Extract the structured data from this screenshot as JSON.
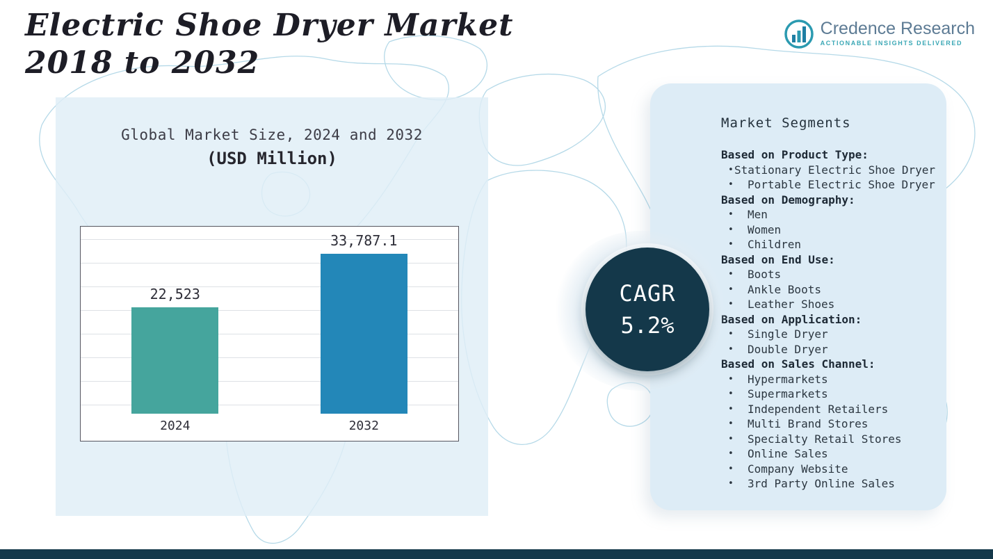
{
  "header": {
    "title_line1": "Electric Shoe Dryer Market",
    "title_line2": "2018 to 2032",
    "logo": {
      "name": "Credence Research",
      "tagline": "Actionable Insights Delivered"
    }
  },
  "chart_panel": {
    "title": "Global Market Size, 2024 and 2032",
    "subtitle": "(USD Million)"
  },
  "chart_data": {
    "type": "bar",
    "title": "Global Market Size, 2024 and 2032",
    "subtitle": "(USD Million)",
    "categories": [
      "2024",
      "2032"
    ],
    "values": [
      22523,
      33787.1
    ],
    "value_labels": [
      "22,523",
      "33,787.1"
    ],
    "bar_colors": [
      "#45a59d",
      "#2387b8"
    ],
    "ylim": [
      0,
      40000
    ],
    "grid": true,
    "legend": false,
    "xlabel": "",
    "ylabel": ""
  },
  "cagr_badge": {
    "label": "CAGR",
    "value": "5.2%"
  },
  "segments_panel": {
    "title": "Market Segments",
    "groups": [
      {
        "heading": "Based on Product Type:",
        "items": [
          "Stationary Electric Shoe Dryer",
          "Portable Electric Shoe Dryer"
        ]
      },
      {
        "heading": "Based on Demography:",
        "items": [
          "Men",
          "Women",
          "Children"
        ]
      },
      {
        "heading": "Based on End Use:",
        "items": [
          "Boots",
          "Ankle Boots",
          "Leather Shoes"
        ]
      },
      {
        "heading": "Based on Application:",
        "items": [
          "Single Dryer",
          "Double Dryer"
        ]
      },
      {
        "heading": "Based on Sales Channel:",
        "items": [
          "Hypermarkets",
          "Supermarkets",
          "Independent Retailers",
          "Multi Brand Stores",
          "Specialty Retail Stores",
          "Online Sales",
          "Company Website",
          "3rd Party Online Sales"
        ]
      }
    ]
  },
  "colors": {
    "accent_teal": "#45a59d",
    "accent_blue": "#2387b8",
    "badge_navy": "#14384a",
    "panel_blue": "#ddecf6",
    "map_line": "#b5d9e8"
  }
}
